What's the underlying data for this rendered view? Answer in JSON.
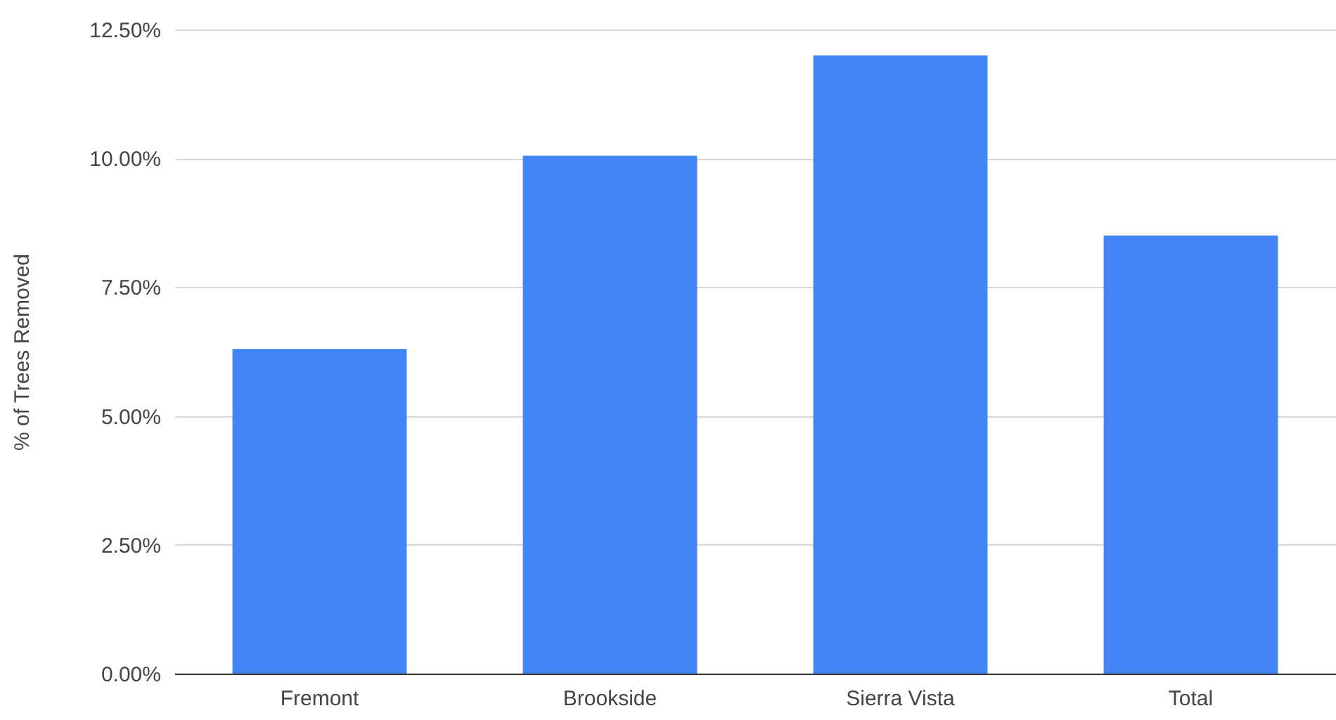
{
  "chart_data": {
    "type": "bar",
    "ylabel": "% of Trees Removed",
    "categories": [
      "Fremont",
      "Brookside",
      "Sierra Vista",
      "Total"
    ],
    "values": [
      6.3,
      10.05,
      12.0,
      8.5
    ],
    "color": "#4285f4",
    "ylim": [
      0,
      12.5
    ],
    "yticks": [
      {
        "value": 0,
        "label": "0.00%"
      },
      {
        "value": 2.5,
        "label": "2.50%"
      },
      {
        "value": 5,
        "label": "5.00%"
      },
      {
        "value": 7.5,
        "label": "7.50%"
      },
      {
        "value": 10,
        "label": "10.00%"
      },
      {
        "value": 12.5,
        "label": "12.50%"
      }
    ],
    "grid": "y"
  }
}
